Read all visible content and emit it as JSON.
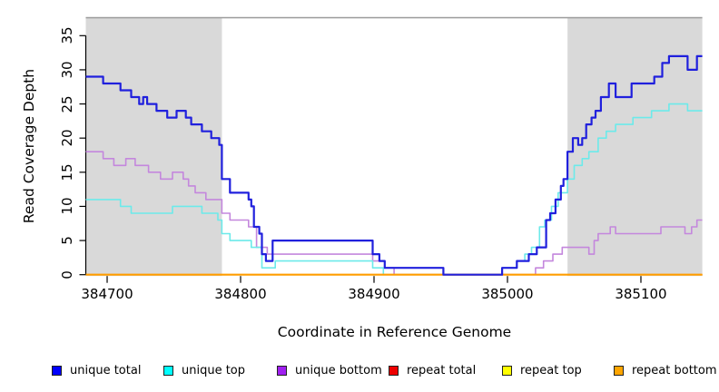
{
  "figure": {
    "x_axis_title": "Coordinate in Reference Genome",
    "y_axis_title": "Read Coverage Depth"
  },
  "legend": {
    "items": [
      {
        "label": "unique total",
        "color": "#0000ff"
      },
      {
        "label": "unique top",
        "color": "#00ffff"
      },
      {
        "label": "unique bottom",
        "color": "#a020f0"
      },
      {
        "label": "repeat total",
        "color": "#ee0000"
      },
      {
        "label": "repeat top",
        "color": "#ffff00"
      },
      {
        "label": "repeat bottom",
        "color": "#ffa500"
      }
    ]
  },
  "chart_data": {
    "type": "line",
    "line_style": "step-after",
    "title": "",
    "xlabel": "Coordinate in Reference Genome",
    "ylabel": "Read Coverage Depth",
    "x_range": [
      384684,
      385146
    ],
    "y_range": [
      0,
      35
    ],
    "x_ticks": [
      384700,
      384800,
      384900,
      385000,
      385100
    ],
    "y_ticks": [
      0,
      5,
      10,
      15,
      20,
      25,
      30,
      35
    ],
    "grid": false,
    "legend_position": "bottom",
    "highlight_regions": [
      {
        "x0": 384684,
        "x1": 384786,
        "color": "#d9d9d9",
        "meaning": "shaded repeat region"
      },
      {
        "x0": 385045,
        "x1": 385146,
        "color": "#d9d9d9",
        "meaning": "shaded repeat region"
      }
    ],
    "series": [
      {
        "name": "repeat total",
        "color": "#ee0000",
        "width": 1.5,
        "steps": [
          [
            384684,
            0
          ],
          [
            385146,
            0
          ]
        ]
      },
      {
        "name": "repeat top",
        "color": "#ffee00",
        "width": 1.5,
        "steps": [
          [
            384684,
            0
          ],
          [
            385146,
            0
          ]
        ]
      },
      {
        "name": "unique bottom",
        "color": "#c487dd",
        "width": 1.6,
        "steps": [
          [
            384684,
            18
          ],
          [
            384697,
            17
          ],
          [
            384705,
            16
          ],
          [
            384714,
            17
          ],
          [
            384721,
            16
          ],
          [
            384731,
            15
          ],
          [
            384740,
            14
          ],
          [
            384749,
            15
          ],
          [
            384757,
            14
          ],
          [
            384761,
            13
          ],
          [
            384766,
            12
          ],
          [
            384774,
            11
          ],
          [
            384786,
            9
          ],
          [
            384792,
            8
          ],
          [
            384806,
            7
          ],
          [
            384812,
            4
          ],
          [
            384820,
            3
          ],
          [
            384899,
            2
          ],
          [
            384908,
            1
          ],
          [
            384915,
            0
          ],
          [
            385021,
            1
          ],
          [
            385027,
            2
          ],
          [
            385034,
            3
          ],
          [
            385041,
            4
          ],
          [
            385061,
            3
          ],
          [
            385065,
            5
          ],
          [
            385068,
            6
          ],
          [
            385077,
            7
          ],
          [
            385081,
            6
          ],
          [
            385115,
            7
          ],
          [
            385133,
            6
          ],
          [
            385138,
            7
          ],
          [
            385142,
            8
          ],
          [
            385146,
            8
          ]
        ]
      },
      {
        "name": "unique top",
        "color": "#6ceaea",
        "width": 1.6,
        "steps": [
          [
            384684,
            11
          ],
          [
            384710,
            10
          ],
          [
            384718,
            9
          ],
          [
            384749,
            10
          ],
          [
            384771,
            9
          ],
          [
            384783,
            8
          ],
          [
            384786,
            6
          ],
          [
            384792,
            5
          ],
          [
            384808,
            4
          ],
          [
            384816,
            1
          ],
          [
            384826,
            2
          ],
          [
            384899,
            1
          ],
          [
            384907,
            0
          ],
          [
            384996,
            1
          ],
          [
            385007,
            2
          ],
          [
            385013,
            3
          ],
          [
            385018,
            4
          ],
          [
            385024,
            7
          ],
          [
            385028,
            8
          ],
          [
            385033,
            10
          ],
          [
            385038,
            12
          ],
          [
            385045,
            14
          ],
          [
            385050,
            16
          ],
          [
            385056,
            17
          ],
          [
            385061,
            18
          ],
          [
            385068,
            20
          ],
          [
            385074,
            21
          ],
          [
            385081,
            22
          ],
          [
            385094,
            23
          ],
          [
            385108,
            24
          ],
          [
            385121,
            25
          ],
          [
            385135,
            24
          ],
          [
            385146,
            24
          ]
        ]
      },
      {
        "name": "repeat bottom",
        "color": "#ff9d00",
        "width": 2.2,
        "steps": [
          [
            384684,
            0
          ],
          [
            385146,
            0
          ]
        ]
      },
      {
        "name": "unique total",
        "color": "#2020dd",
        "width": 2.2,
        "steps": [
          [
            384684,
            29
          ],
          [
            384697,
            28
          ],
          [
            384710,
            27
          ],
          [
            384718,
            26
          ],
          [
            384724,
            25
          ],
          [
            384727,
            26
          ],
          [
            384730,
            25
          ],
          [
            384737,
            24
          ],
          [
            384745,
            23
          ],
          [
            384752,
            24
          ],
          [
            384759,
            23
          ],
          [
            384763,
            22
          ],
          [
            384771,
            21
          ],
          [
            384778,
            20
          ],
          [
            384784,
            19
          ],
          [
            384786,
            14
          ],
          [
            384792,
            12
          ],
          [
            384806,
            11
          ],
          [
            384808,
            10
          ],
          [
            384810,
            7
          ],
          [
            384814,
            6
          ],
          [
            384816,
            3
          ],
          [
            384819,
            2
          ],
          [
            384824,
            5
          ],
          [
            384899,
            3
          ],
          [
            384904,
            2
          ],
          [
            384908,
            1
          ],
          [
            384952,
            0
          ],
          [
            384996,
            1
          ],
          [
            385007,
            2
          ],
          [
            385016,
            3
          ],
          [
            385022,
            4
          ],
          [
            385029,
            8
          ],
          [
            385032,
            9
          ],
          [
            385036,
            11
          ],
          [
            385040,
            13
          ],
          [
            385042,
            14
          ],
          [
            385045,
            18
          ],
          [
            385049,
            20
          ],
          [
            385053,
            19
          ],
          [
            385056,
            20
          ],
          [
            385059,
            22
          ],
          [
            385063,
            23
          ],
          [
            385066,
            24
          ],
          [
            385070,
            26
          ],
          [
            385076,
            28
          ],
          [
            385081,
            26
          ],
          [
            385093,
            28
          ],
          [
            385110,
            29
          ],
          [
            385116,
            31
          ],
          [
            385121,
            32
          ],
          [
            385135,
            30
          ],
          [
            385142,
            32
          ],
          [
            385146,
            32
          ]
        ]
      }
    ]
  }
}
